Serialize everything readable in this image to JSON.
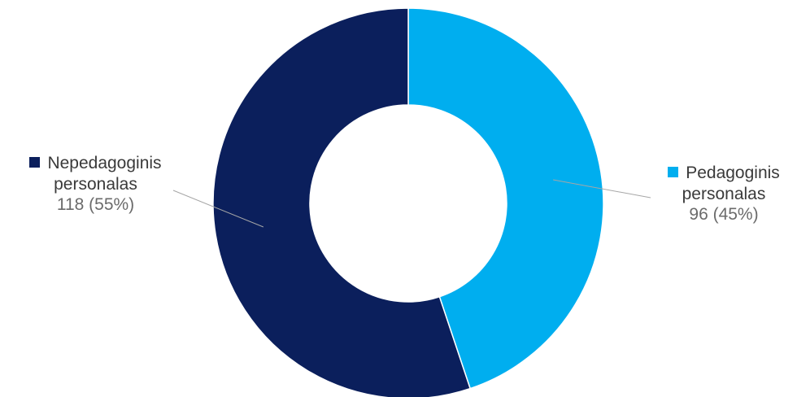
{
  "chart_data": {
    "type": "pie",
    "donut": true,
    "categories": [
      "Nepedagoginis personalas",
      "Pedagoginis personalas"
    ],
    "values": [
      118,
      96
    ],
    "percent": [
      55,
      45
    ],
    "colors": [
      "#0b1f5c",
      "#00aeef"
    ],
    "labels": [
      {
        "line1": "Nepedagoginis",
        "line2": "personalas",
        "value_text": "118 (55%)"
      },
      {
        "line1": "Pedagoginis",
        "line2": "personalas",
        "value_text": "96 (45%)"
      }
    ]
  }
}
